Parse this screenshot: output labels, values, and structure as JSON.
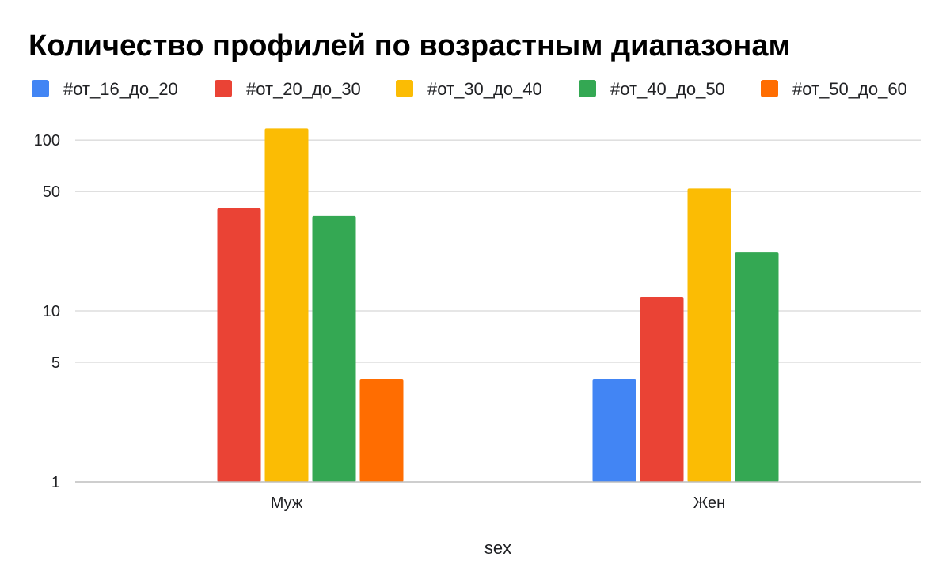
{
  "chart_data": {
    "type": "bar",
    "title": "Количество профилей по возрастным диапазонам",
    "xlabel": "sex",
    "ylabel": "",
    "yscale": "log",
    "ylim": [
      1,
      120
    ],
    "yticks": [
      1,
      5,
      10,
      50,
      100
    ],
    "grid": true,
    "legend_position": "top",
    "categories": [
      "Муж",
      "Жен"
    ],
    "series": [
      {
        "name": "#от_16_до_20",
        "color": "#4285f4",
        "values": [
          null,
          4
        ]
      },
      {
        "name": "#от_20_до_30",
        "color": "#ea4335",
        "values": [
          40,
          12
        ]
      },
      {
        "name": "#от_30_до_40",
        "color": "#fbbc04",
        "values": [
          117,
          52
        ]
      },
      {
        "name": "#от_40_до_50",
        "color": "#34a853",
        "values": [
          36,
          22
        ]
      },
      {
        "name": "#от_50_до_60",
        "color": "#ff6d01",
        "values": [
          4,
          null
        ]
      }
    ]
  }
}
